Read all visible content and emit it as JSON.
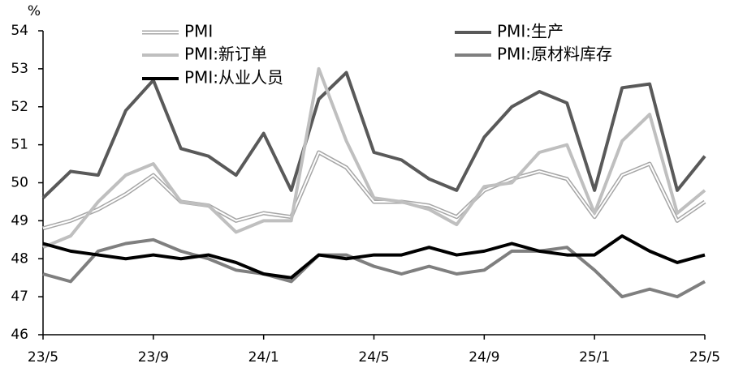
{
  "chart_data": {
    "type": "line",
    "y_unit_label": "%",
    "categories": [
      "23/5",
      null,
      null,
      null,
      "23/9",
      null,
      null,
      null,
      "24/1",
      null,
      null,
      null,
      "24/5",
      null,
      null,
      null,
      "24/9",
      null,
      null,
      null,
      "25/1",
      null,
      null,
      null,
      "25/5"
    ],
    "ylim": [
      46,
      54
    ],
    "yticks": [
      46,
      47,
      48,
      49,
      50,
      51,
      52,
      53,
      54
    ],
    "grid": false,
    "series": [
      {
        "name": "PMI",
        "color": "#ffffff",
        "outline_color": "#a6a6a6",
        "values": [
          48.8,
          49.0,
          49.3,
          49.7,
          50.2,
          49.5,
          49.4,
          49.0,
          49.2,
          49.1,
          50.8,
          50.4,
          49.5,
          49.5,
          49.4,
          49.1,
          49.8,
          50.1,
          50.3,
          50.1,
          49.1,
          50.2,
          50.5,
          49.0,
          49.5
        ]
      },
      {
        "name": "PMI:生产",
        "color": "#595959",
        "values": [
          49.6,
          50.3,
          50.2,
          51.9,
          52.7,
          50.9,
          50.7,
          50.2,
          51.3,
          49.8,
          52.2,
          52.9,
          50.8,
          50.6,
          50.1,
          49.8,
          51.2,
          52.0,
          52.4,
          52.1,
          49.8,
          52.5,
          52.6,
          49.8,
          50.7
        ]
      },
      {
        "name": "PMI:新订单",
        "color": "#bfbfbf",
        "values": [
          48.3,
          48.6,
          49.5,
          50.2,
          50.5,
          49.5,
          49.4,
          48.7,
          49.0,
          49.0,
          53.0,
          51.1,
          49.6,
          49.5,
          49.3,
          48.9,
          49.9,
          50.0,
          50.8,
          51.0,
          49.2,
          51.1,
          51.8,
          49.2,
          49.8
        ]
      },
      {
        "name": "PMI:原材料库存",
        "color": "#7f7f7f",
        "values": [
          47.6,
          47.4,
          48.2,
          48.4,
          48.5,
          48.2,
          48.0,
          47.7,
          47.6,
          47.4,
          48.1,
          48.1,
          47.8,
          47.6,
          47.8,
          47.6,
          47.7,
          48.2,
          48.2,
          48.3,
          47.7,
          47.0,
          47.2,
          47.0,
          47.4
        ]
      },
      {
        "name": "PMI:从业人员",
        "color": "#000000",
        "values": [
          48.4,
          48.2,
          48.1,
          48.0,
          48.1,
          48.0,
          48.1,
          47.9,
          47.6,
          47.5,
          48.1,
          48.0,
          48.1,
          48.1,
          48.3,
          48.1,
          48.2,
          48.4,
          48.2,
          48.1,
          48.1,
          48.6,
          48.2,
          47.9,
          48.1
        ]
      }
    ]
  }
}
